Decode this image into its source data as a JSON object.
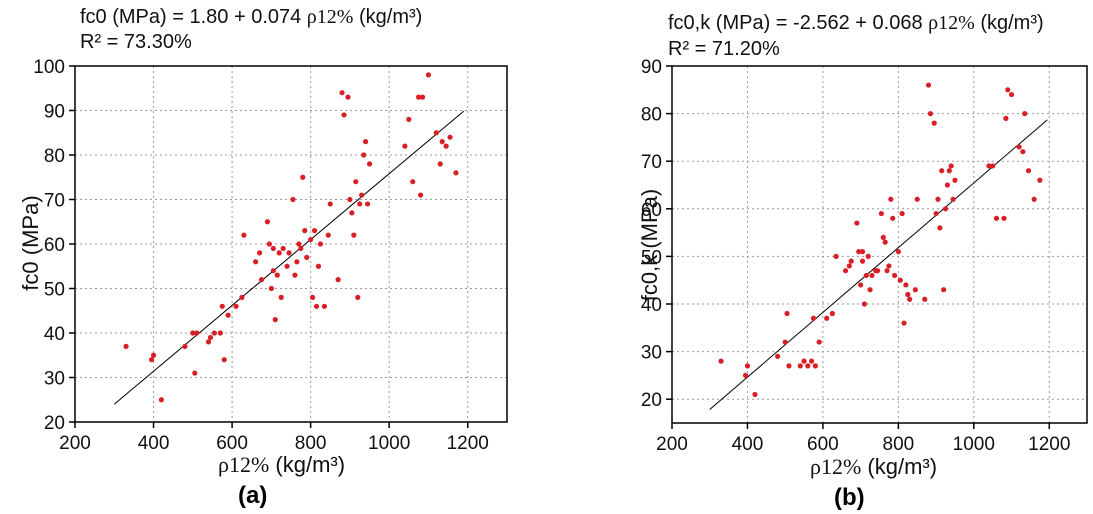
{
  "chart_data": [
    {
      "type": "scatter",
      "id": "a",
      "caption": "(a)",
      "equation": {
        "prefix": "fc0 (MPa) = 1.80 + 0.074 ",
        "variable": "ρ12%",
        "unit": " (kg/m³)"
      },
      "r_squared": "R² = 73.30%",
      "xlabel": {
        "variable": "ρ12%",
        "unit": " (kg/m³)"
      },
      "ylabel": "fc0 (MPa)",
      "xlim": [
        200,
        1300
      ],
      "ylim": [
        20,
        100
      ],
      "x_ticks": [
        "200",
        "400",
        "600",
        "800",
        "1000",
        "1200"
      ],
      "y_ticks": [
        "20",
        "30",
        "40",
        "50",
        "60",
        "70",
        "80",
        "90",
        "100"
      ],
      "grid": true,
      "point_color": "#d81f26",
      "fit_line": {
        "intercept": 1.8,
        "slope": 0.074,
        "x_range": [
          300,
          1190
        ]
      },
      "points": [
        [
          330,
          37
        ],
        [
          395,
          34
        ],
        [
          400,
          35
        ],
        [
          420,
          25
        ],
        [
          480,
          37
        ],
        [
          500,
          40
        ],
        [
          505,
          31
        ],
        [
          510,
          40
        ],
        [
          540,
          38
        ],
        [
          545,
          39
        ],
        [
          555,
          40
        ],
        [
          570,
          40
        ],
        [
          575,
          46
        ],
        [
          580,
          34
        ],
        [
          590,
          44
        ],
        [
          610,
          46
        ],
        [
          625,
          48
        ],
        [
          630,
          62
        ],
        [
          660,
          56
        ],
        [
          670,
          58
        ],
        [
          675,
          52
        ],
        [
          690,
          65
        ],
        [
          695,
          60
        ],
        [
          700,
          50
        ],
        [
          705,
          59
        ],
        [
          710,
          43
        ],
        [
          705,
          54
        ],
        [
          715,
          53
        ],
        [
          720,
          58
        ],
        [
          725,
          48
        ],
        [
          730,
          59
        ],
        [
          740,
          55
        ],
        [
          745,
          58
        ],
        [
          755,
          70
        ],
        [
          760,
          53
        ],
        [
          765,
          56
        ],
        [
          770,
          60
        ],
        [
          775,
          59
        ],
        [
          780,
          75
        ],
        [
          785,
          63
        ],
        [
          790,
          57
        ],
        [
          800,
          61
        ],
        [
          805,
          48
        ],
        [
          810,
          63
        ],
        [
          815,
          46
        ],
        [
          820,
          55
        ],
        [
          825,
          60
        ],
        [
          835,
          46
        ],
        [
          845,
          62
        ],
        [
          850,
          69
        ],
        [
          870,
          52
        ],
        [
          880,
          94
        ],
        [
          885,
          89
        ],
        [
          895,
          93
        ],
        [
          900,
          70
        ],
        [
          905,
          67
        ],
        [
          910,
          62
        ],
        [
          915,
          74
        ],
        [
          920,
          48
        ],
        [
          925,
          69
        ],
        [
          930,
          71
        ],
        [
          935,
          80
        ],
        [
          940,
          83
        ],
        [
          945,
          69
        ],
        [
          950,
          78
        ],
        [
          1040,
          82
        ],
        [
          1050,
          88
        ],
        [
          1060,
          74
        ],
        [
          1075,
          93
        ],
        [
          1080,
          71
        ],
        [
          1085,
          93
        ],
        [
          1100,
          98
        ],
        [
          1120,
          85
        ],
        [
          1130,
          78
        ],
        [
          1135,
          83
        ],
        [
          1145,
          82
        ],
        [
          1155,
          84
        ],
        [
          1170,
          76
        ]
      ]
    },
    {
      "type": "scatter",
      "id": "b",
      "caption": "(b)",
      "equation": {
        "prefix": "fc0,k (MPa) = -2.562 + 0.068 ",
        "variable": "ρ12%",
        "unit": " (kg/m³)"
      },
      "r_squared": "R² = 71.20%",
      "xlabel": {
        "variable": "ρ12%",
        "unit": " (kg/m³)"
      },
      "ylabel": "fc0,k (MPa)",
      "xlim": [
        200,
        1300
      ],
      "ylim": [
        15,
        90
      ],
      "x_ticks": [
        "200",
        "400",
        "600",
        "800",
        "1000",
        "1200"
      ],
      "y_ticks": [
        "20",
        "30",
        "40",
        "50",
        "60",
        "70",
        "80",
        "90"
      ],
      "grid": true,
      "point_color": "#d81f26",
      "fit_line": {
        "intercept": -2.562,
        "slope": 0.068,
        "x_range": [
          300,
          1195
        ]
      },
      "points": [
        [
          330,
          28
        ],
        [
          395,
          25
        ],
        [
          400,
          27
        ],
        [
          420,
          21
        ],
        [
          480,
          29
        ],
        [
          500,
          32
        ],
        [
          505,
          38
        ],
        [
          510,
          27
        ],
        [
          540,
          27
        ],
        [
          550,
          28
        ],
        [
          560,
          27
        ],
        [
          570,
          28
        ],
        [
          575,
          37
        ],
        [
          580,
          27
        ],
        [
          590,
          32
        ],
        [
          610,
          37
        ],
        [
          625,
          38
        ],
        [
          635,
          50
        ],
        [
          660,
          47
        ],
        [
          670,
          48
        ],
        [
          675,
          49
        ],
        [
          690,
          57
        ],
        [
          695,
          51
        ],
        [
          700,
          44
        ],
        [
          705,
          51
        ],
        [
          710,
          40
        ],
        [
          705,
          49
        ],
        [
          715,
          46
        ],
        [
          720,
          50
        ],
        [
          725,
          43
        ],
        [
          730,
          46
        ],
        [
          740,
          47
        ],
        [
          745,
          47
        ],
        [
          755,
          59
        ],
        [
          760,
          54
        ],
        [
          765,
          53
        ],
        [
          770,
          47
        ],
        [
          775,
          48
        ],
        [
          780,
          62
        ],
        [
          785,
          58
        ],
        [
          790,
          46
        ],
        [
          800,
          51
        ],
        [
          805,
          45
        ],
        [
          810,
          59
        ],
        [
          815,
          36
        ],
        [
          820,
          44
        ],
        [
          825,
          42
        ],
        [
          830,
          41
        ],
        [
          845,
          43
        ],
        [
          850,
          62
        ],
        [
          870,
          41
        ],
        [
          880,
          86
        ],
        [
          885,
          80
        ],
        [
          895,
          78
        ],
        [
          900,
          59
        ],
        [
          905,
          62
        ],
        [
          910,
          56
        ],
        [
          915,
          68
        ],
        [
          920,
          43
        ],
        [
          925,
          60
        ],
        [
          930,
          65
        ],
        [
          935,
          68
        ],
        [
          940,
          69
        ],
        [
          945,
          62
        ],
        [
          950,
          66
        ],
        [
          1040,
          69
        ],
        [
          1050,
          69
        ],
        [
          1060,
          58
        ],
        [
          1080,
          58
        ],
        [
          1085,
          79
        ],
        [
          1090,
          85
        ],
        [
          1100,
          84
        ],
        [
          1120,
          73
        ],
        [
          1130,
          72
        ],
        [
          1135,
          80
        ],
        [
          1145,
          68
        ],
        [
          1160,
          62
        ],
        [
          1175,
          66
        ]
      ]
    }
  ]
}
